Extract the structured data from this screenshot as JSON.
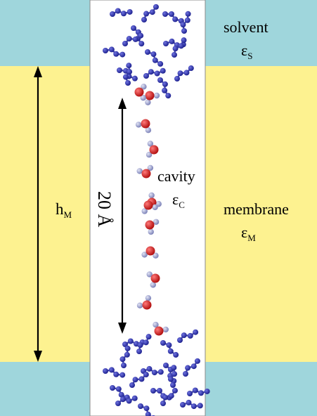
{
  "colors": {
    "solvent": "#9fd6dc",
    "membrane": "#fdf290",
    "cavity": "#ffffff",
    "border": "#8a8a8a",
    "arrow": "#000000",
    "oxygen": "#cc1f1f",
    "hydrogen": "#9aa0cc",
    "solvent_molecule": "#2b2f9e"
  },
  "labels": {
    "solvent": "solvent",
    "solvent_eps_symbol": "ε",
    "solvent_eps_sub": "S",
    "membrane": "membrane",
    "membrane_eps_symbol": "ε",
    "membrane_eps_sub": "M",
    "cavity": "cavity",
    "cavity_eps_symbol": "ε",
    "cavity_eps_sub": "C",
    "h_symbol": "h",
    "h_sub": "M",
    "length": "20 Å"
  },
  "icons": {
    "dimension_arrow": "double-headed-arrow",
    "water": "water-molecule",
    "solvent": "solvent-molecule"
  },
  "water_molecule_count": 12
}
